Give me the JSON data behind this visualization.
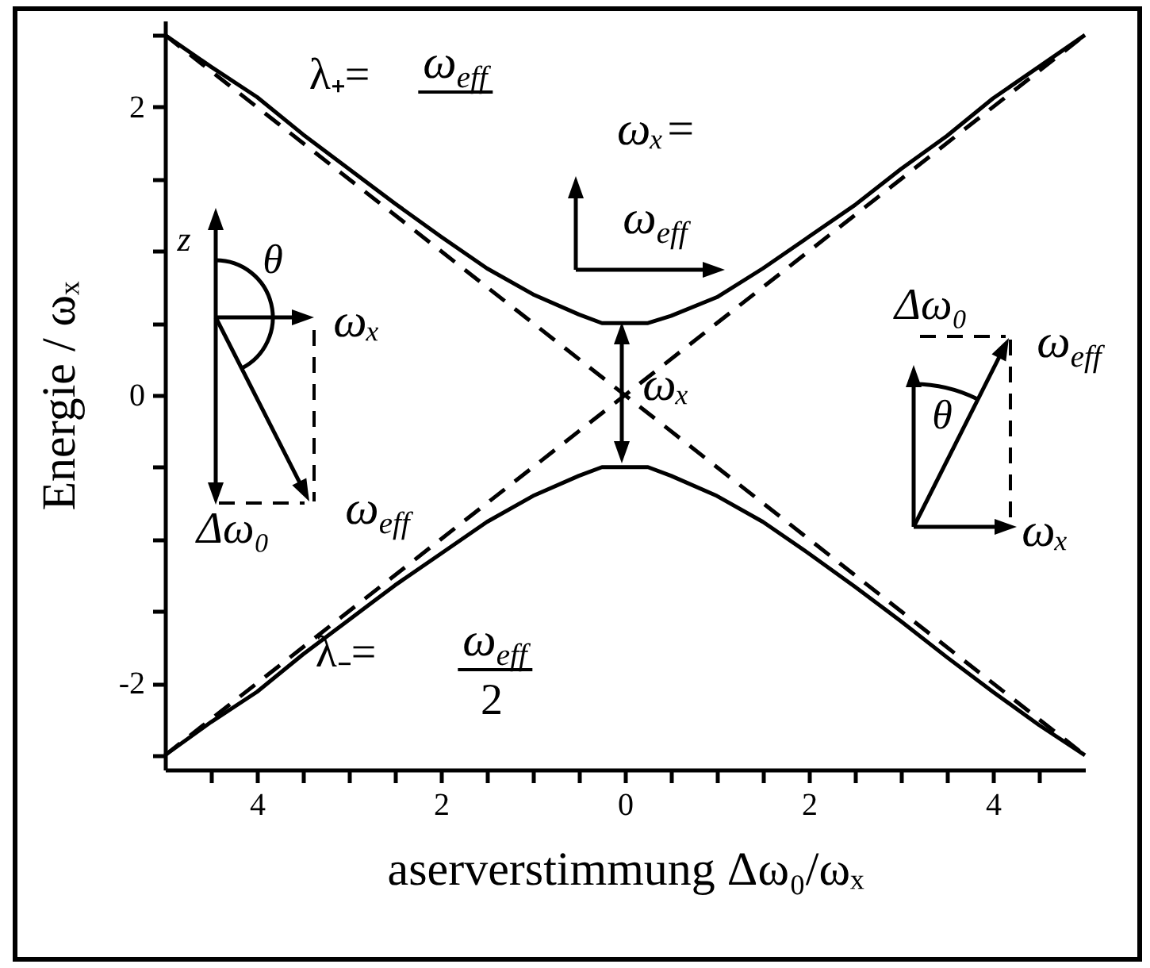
{
  "chart_data": {
    "type": "line",
    "xlabel": "aserverstimmung Δω₀/ωₓ",
    "ylabel": "Energie / ωₓ",
    "xlim": [
      -5,
      5
    ],
    "ylim": [
      -2.6,
      2.6
    ],
    "xticks": [
      {
        "value": -4.5,
        "label": null
      },
      {
        "value": -4,
        "label": "4"
      },
      {
        "value": -3.5,
        "label": null
      },
      {
        "value": -3,
        "label": null
      },
      {
        "value": -2.5,
        "label": null
      },
      {
        "value": -2,
        "label": "2"
      },
      {
        "value": -1.5,
        "label": null
      },
      {
        "value": -1,
        "label": null
      },
      {
        "value": -0.5,
        "label": null
      },
      0,
      {
        "value": 0.5,
        "label": null
      },
      {
        "value": 1,
        "label": null
      },
      {
        "value": 1.5,
        "label": null
      },
      2,
      {
        "value": 2.5,
        "label": null
      },
      {
        "value": 3,
        "label": null
      },
      {
        "value": 3.5,
        "label": null
      },
      4,
      {
        "value": 4.5,
        "label": null
      }
    ],
    "yticks": [
      {
        "value": -2.5,
        "label": null
      },
      -2,
      {
        "value": -1.5,
        "label": null
      },
      {
        "value": -1,
        "label": null
      },
      {
        "value": -0.5,
        "label": null
      },
      0,
      {
        "value": 0.5,
        "label": null
      },
      {
        "value": 1,
        "label": null
      },
      {
        "value": 1.5,
        "label": null
      },
      2,
      {
        "value": 2.5,
        "label": null
      }
    ],
    "grid": false,
    "line_style": "solid",
    "series": [
      {
        "color": "#000000",
        "x": [
          -5,
          -4.5,
          -4,
          -3.5,
          -3,
          -2.5,
          -2,
          -1.5,
          -1,
          -0.5,
          -0.25,
          0.25,
          0.5,
          1,
          1.5,
          2,
          2.5,
          3,
          3.5,
          4,
          4.5,
          5
        ],
        "values": [
          2.5,
          2.28,
          2.07,
          1.81,
          1.57,
          1.33,
          1.1,
          0.88,
          0.7,
          0.56,
          0.5,
          0.5,
          0.55,
          0.68,
          0.88,
          1.1,
          1.32,
          1.57,
          1.8,
          2.06,
          2.28,
          2.5
        ]
      },
      {
        "color": "#000000",
        "x": [
          -5,
          -4.5,
          -4,
          -3.5,
          -3,
          -2.5,
          -2,
          -1.5,
          -1,
          -0.5,
          -0.25,
          0.25,
          0.5,
          1,
          1.5,
          2,
          2.5,
          3,
          3.5,
          4,
          4.5,
          5
        ],
        "values": [
          -2.5,
          -2.27,
          -2.06,
          -1.8,
          -1.56,
          -1.32,
          -1.1,
          -0.88,
          -0.7,
          -0.56,
          -0.5,
          -0.5,
          -0.56,
          -0.7,
          -0.88,
          -1.1,
          -1.33,
          -1.57,
          -1.82,
          -2.06,
          -2.29,
          -2.5
        ]
      },
      {
        "color": "#000000",
        "line_style": "dashed",
        "x": [
          -5,
          5
        ],
        "values": [
          2.5,
          -2.5
        ]
      },
      {
        "color": "#000000",
        "line_style": "dashed",
        "x": [
          -5,
          5
        ],
        "values": [
          -2.5,
          2.5
        ]
      }
    ],
    "annotations": [
      "λ₊=",
      "ω$_{eff}$",
      "ωₓ=",
      "ω$_{eff}$",
      "ωₓ",
      "z",
      "θ",
      "ωₓ",
      "Δω₀",
      "ω$_{eff}$",
      "Δω₀",
      "ω$_{eff}$",
      "θ",
      "ωₓ",
      "λ₋=",
      "ω$_{eff}$",
      "2"
    ]
  }
}
